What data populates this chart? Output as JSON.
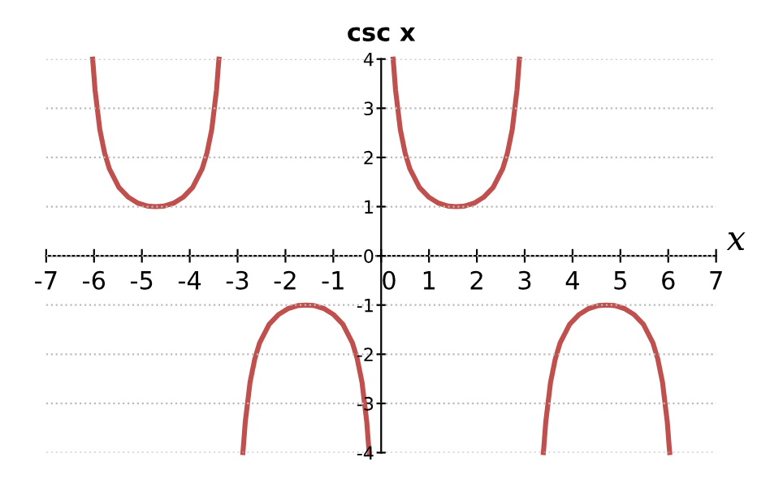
{
  "chart_data": {
    "type": "line",
    "title": "csc x",
    "xlabel": "x",
    "xlim": [
      -7,
      7
    ],
    "ylim": [
      -4,
      4
    ],
    "xticks": [
      -7,
      -6,
      -5,
      -4,
      -3,
      -2,
      -1,
      0,
      1,
      2,
      3,
      4,
      5,
      6,
      7
    ],
    "yticks": [
      -4,
      -3,
      -2,
      -1,
      0,
      1,
      2,
      3,
      4
    ],
    "grid": "y",
    "line_style": "solid",
    "marker": "none",
    "series": [
      {
        "color": "#c0504d",
        "x": [
          -6.03,
          -6.02,
          -5.98,
          -5.88,
          -5.78,
          -5.68,
          -5.48,
          -5.28,
          -5.08,
          -4.88,
          -4.71,
          -4.54,
          -4.34,
          -4.14,
          -3.94,
          -3.74,
          -3.64,
          -3.54,
          -3.44,
          -3.4,
          -3.39
        ],
        "values": [
          4,
          3.89,
          3.38,
          2.57,
          2.09,
          1.77,
          1.39,
          1.19,
          1.07,
          1.01,
          1,
          1.01,
          1.07,
          1.19,
          1.39,
          1.77,
          2.09,
          2.57,
          3.38,
          3.89,
          4
        ]
      },
      {
        "color": "#c0504d",
        "x": [
          -2.89,
          -2.88,
          -2.84,
          -2.74,
          -2.64,
          -2.54,
          -2.34,
          -2.14,
          -1.94,
          -1.74,
          -1.57,
          -1.4,
          -1.2,
          -1,
          -0.8,
          -0.6,
          -0.5,
          -0.4,
          -0.3,
          -0.26,
          -0.25
        ],
        "values": [
          -4,
          -3.89,
          -3.38,
          -2.57,
          -2.09,
          -1.77,
          -1.39,
          -1.19,
          -1.07,
          -1.01,
          -1,
          -1.01,
          -1.07,
          -1.19,
          -1.39,
          -1.77,
          -2.09,
          -2.57,
          -3.38,
          -3.89,
          -4
        ]
      },
      {
        "color": "#c0504d",
        "x": [
          0.25,
          0.26,
          0.3,
          0.4,
          0.5,
          0.6,
          0.8,
          1,
          1.2,
          1.4,
          1.57,
          1.74,
          1.94,
          2.14,
          2.34,
          2.54,
          2.64,
          2.74,
          2.84,
          2.88,
          2.89
        ],
        "values": [
          4,
          3.89,
          3.38,
          2.57,
          2.09,
          1.77,
          1.39,
          1.19,
          1.07,
          1.01,
          1,
          1.01,
          1.07,
          1.19,
          1.39,
          1.77,
          2.09,
          2.57,
          3.38,
          3.89,
          4
        ]
      },
      {
        "color": "#c0504d",
        "x": [
          3.39,
          3.4,
          3.44,
          3.54,
          3.64,
          3.74,
          3.94,
          4.14,
          4.34,
          4.54,
          4.71,
          4.88,
          5.08,
          5.28,
          5.48,
          5.68,
          5.78,
          5.88,
          5.98,
          6.02,
          6.03
        ],
        "values": [
          -4,
          -3.89,
          -3.38,
          -2.57,
          -2.09,
          -1.77,
          -1.39,
          -1.19,
          -1.07,
          -1.01,
          -1,
          -1.01,
          -1.07,
          -1.19,
          -1.39,
          -1.77,
          -2.09,
          -2.57,
          -3.38,
          -3.89,
          -4
        ]
      }
    ]
  }
}
